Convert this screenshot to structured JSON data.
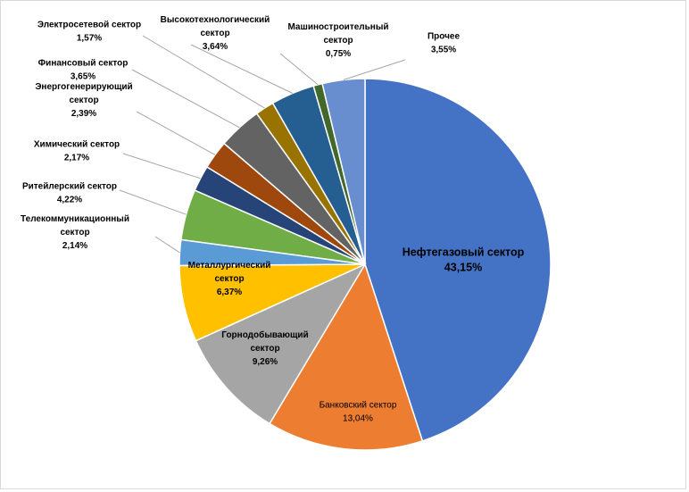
{
  "chart_data": {
    "type": "pie",
    "title": "",
    "start": "top, clockwise",
    "slices": [
      {
        "label": "Нефтегазовый сектор",
        "value": 43.15,
        "value_label": "43,15%",
        "color": "#4472c4",
        "label_pos": "inside",
        "bold": true,
        "big": true,
        "label_lines": [
          "Нефтегазовый сектор"
        ]
      },
      {
        "label": "Банковский сектор",
        "value": 13.04,
        "value_label": "13,04%",
        "color": "#ed7d31",
        "label_pos": "inside",
        "label_lines": [
          "Банковский сектор"
        ]
      },
      {
        "label": "Горнодобывающий сектор",
        "value": 9.26,
        "value_label": "9,26%",
        "color": "#a5a5a5",
        "label_pos": "inside",
        "bold": true,
        "label_lines": [
          "Горнодобывающий",
          "сектор"
        ]
      },
      {
        "label": "Металлургический сектор",
        "value": 6.37,
        "value_label": "6,37%",
        "color": "#ffc000",
        "label_pos": "inside",
        "bold": true,
        "label_lines": [
          "Металлургический",
          "сектор"
        ]
      },
      {
        "label": "Телекоммуникационный сектор",
        "value": 2.14,
        "value_label": "2,14%",
        "color": "#5b9bd5",
        "label_pos": "outside",
        "bold": true,
        "label_lines": [
          "Телекоммуникационный",
          "сектор"
        ]
      },
      {
        "label": "Ритейлерский сектор",
        "value": 4.22,
        "value_label": "4,22%",
        "color": "#70ad47",
        "label_pos": "outside",
        "bold": true,
        "label_lines": [
          "Ритейлерский сектор"
        ]
      },
      {
        "label": "Химический сектор",
        "value": 2.17,
        "value_label": "2,17%",
        "color": "#264478",
        "label_pos": "outside",
        "bold": true,
        "label_lines": [
          "Химический сектор"
        ]
      },
      {
        "label": "Энергогенерирующий сектор",
        "value": 2.39,
        "value_label": "2,39%",
        "color": "#9e480e",
        "label_pos": "outside",
        "bold": true,
        "label_lines": [
          "Энергогенерирующий",
          "сектор"
        ]
      },
      {
        "label": "Финансовый сектор",
        "value": 3.65,
        "value_label": "3,65%",
        "color": "#636363",
        "label_pos": "outside",
        "bold": true,
        "label_lines": [
          "Финансовый сектор"
        ]
      },
      {
        "label": "Электросетевой сектор",
        "value": 1.57,
        "value_label": "1,57%",
        "color": "#997300",
        "label_pos": "outside",
        "bold": true,
        "label_lines": [
          "Электросетевой сектор"
        ]
      },
      {
        "label": "Высокотехнологический сектор",
        "value": 3.64,
        "value_label": "3,64%",
        "color": "#255e91",
        "label_pos": "outside",
        "bold": true,
        "label_lines": [
          "Высокотехнологический",
          "сектор"
        ]
      },
      {
        "label": "Машиностроительный сектор",
        "value": 0.75,
        "value_label": "0,75%",
        "color": "#43682b",
        "label_pos": "outside",
        "bold": true,
        "label_lines": [
          "Машиностроительный",
          "сектор"
        ]
      },
      {
        "label": "Прочее",
        "value": 3.55,
        "value_label": "3,55%",
        "color": "#698ed0",
        "label_pos": "outside",
        "bold": true,
        "label_lines": [
          "Прочее"
        ]
      }
    ]
  }
}
